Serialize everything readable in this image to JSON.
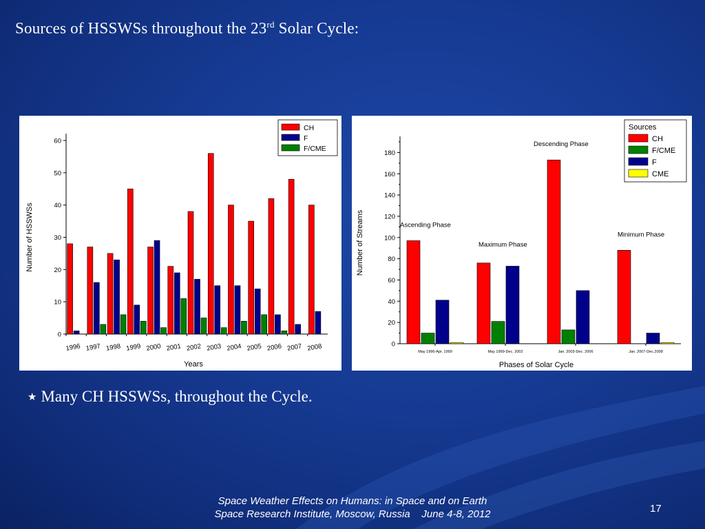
{
  "slide": {
    "title_main": "Sources of  HSSWSs throughout the 23",
    "title_sup": "rd",
    "title_end": " Solar Cycle:",
    "bullet_symbol": "★",
    "bullet": "Many CH HSSWSs, throughout the Cycle.",
    "footer_line1": "Space Weather Effects on Humans: in Space and on Earth",
    "footer_line2": "Space Research Institute, Moscow, Russia    June 4-8, 2012",
    "page_number": "17"
  },
  "chart_data": [
    {
      "type": "bar",
      "categories": [
        "1996",
        "1997",
        "1998",
        "1999",
        "2000",
        "2001",
        "2002",
        "2003",
        "2004",
        "2005",
        "2006",
        "2007",
        "2008"
      ],
      "series": [
        {
          "name": "CH",
          "color": "#ff0000",
          "values": [
            28,
            27,
            25,
            45,
            27,
            21,
            38,
            56,
            40,
            35,
            42,
            48,
            40
          ]
        },
        {
          "name": "F",
          "color": "#00008b",
          "values": [
            1,
            16,
            23,
            9,
            29,
            19,
            17,
            15,
            15,
            14,
            6,
            3,
            7
          ]
        },
        {
          "name": "F/CME",
          "color": "#008000",
          "values": [
            0,
            3,
            6,
            4,
            2,
            11,
            5,
            2,
            4,
            6,
            1,
            0,
            0
          ]
        }
      ],
      "xlabel": "Years",
      "ylabel": "Number of HSSWSs",
      "ylim": [
        0,
        60
      ],
      "yticks": [
        0,
        10,
        20,
        30,
        40,
        50,
        60
      ],
      "legend": "top-right"
    },
    {
      "type": "bar",
      "categories": [
        "May 1996-Apr. 1999",
        "May 1999-Dec. 2002",
        "Jan. 2003-Dec. 2006",
        "Jan. 2007-Dec.2008"
      ],
      "phase_labels": [
        "Ascending Phase",
        "Maximum Phase",
        "Descending Phase",
        "Minimum Phase"
      ],
      "series": [
        {
          "name": "CH",
          "color": "#ff0000",
          "values": [
            97,
            76,
            173,
            88
          ]
        },
        {
          "name": "F/CME",
          "color": "#008000",
          "values": [
            10,
            21,
            13,
            0
          ]
        },
        {
          "name": "F",
          "color": "#00008b",
          "values": [
            41,
            73,
            50,
            10
          ]
        },
        {
          "name": "CME",
          "color": "#ffff00",
          "values": [
            1,
            0,
            0,
            1
          ]
        }
      ],
      "xlabel": "Phases of Solar Cycle",
      "ylabel": "Number of Streams",
      "legend_title": "Sources",
      "ylim": [
        0,
        190
      ],
      "yticks": [
        0,
        20,
        40,
        60,
        80,
        100,
        120,
        140,
        160,
        180
      ],
      "legend": "top-right"
    }
  ]
}
